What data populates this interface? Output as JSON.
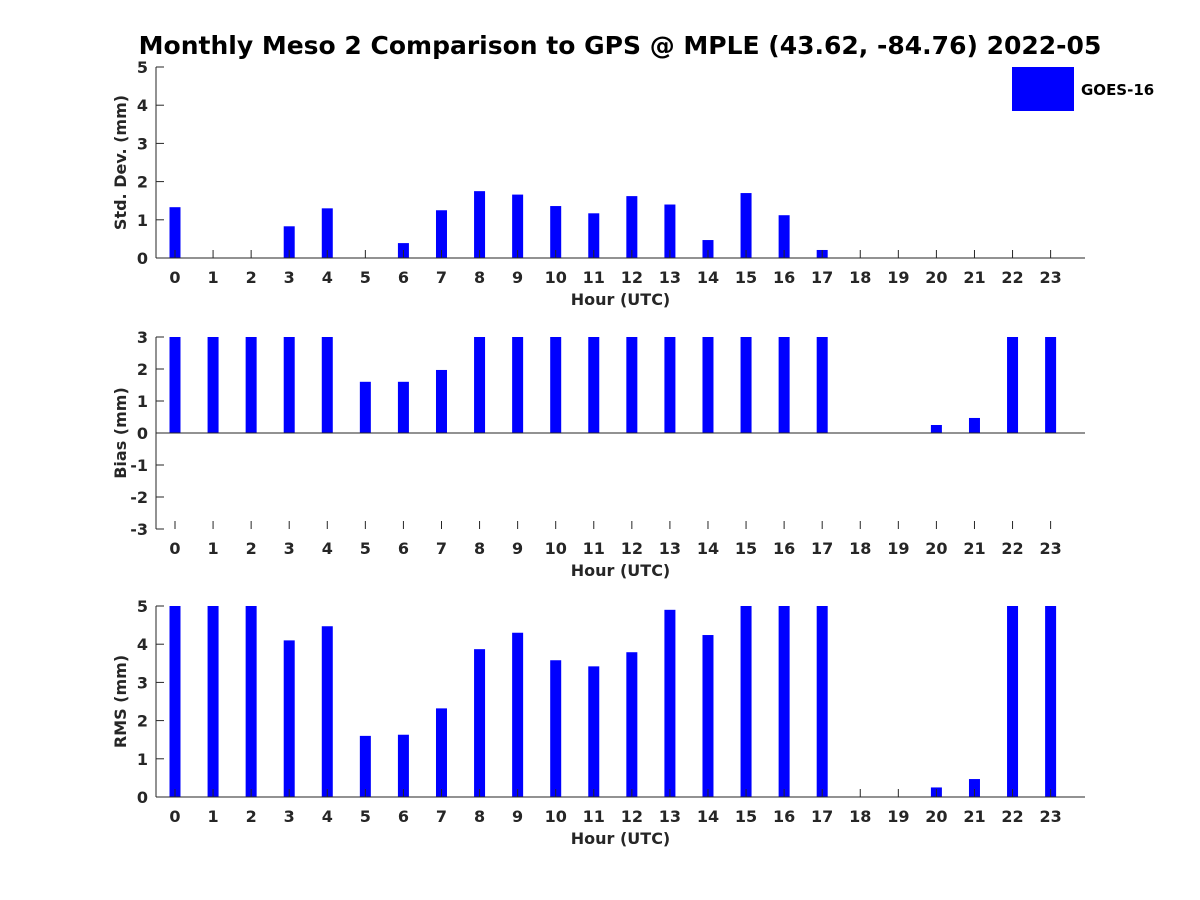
{
  "figure": {
    "title": "Monthly Meso 2 Comparison to GPS @ MPLE (43.62, -84.76) 2022-05"
  },
  "legend": {
    "label": "GOES-16",
    "color": "#0000ff",
    "placement": "top-right"
  },
  "colors": {
    "bar": "#0000ff",
    "axis": "#262626"
  },
  "chart_data": [
    {
      "type": "bar",
      "ylabel": "Std. Dev. (mm)",
      "xlabel": "Hour (UTC)",
      "ylim": [
        0,
        5
      ],
      "yticks": [
        0,
        1,
        2,
        3,
        4,
        5
      ],
      "categories": [
        "0",
        "1",
        "2",
        "3",
        "4",
        "5",
        "6",
        "7",
        "8",
        "9",
        "10",
        "11",
        "12",
        "13",
        "14",
        "15",
        "16",
        "17",
        "18",
        "19",
        "20",
        "21",
        "22",
        "23"
      ],
      "series": [
        {
          "name": "GOES-16",
          "values": [
            1.33,
            0,
            0,
            0.83,
            1.3,
            0,
            0.39,
            1.25,
            1.75,
            1.66,
            1.36,
            1.17,
            1.62,
            1.4,
            0.47,
            1.7,
            1.12,
            0.21,
            0,
            0,
            0,
            0,
            0,
            0
          ]
        }
      ]
    },
    {
      "type": "bar",
      "ylabel": "Bias (mm)",
      "xlabel": "Hour (UTC)",
      "ylim": [
        -3,
        3
      ],
      "yticks": [
        -3,
        -2,
        -1,
        0,
        1,
        2,
        3
      ],
      "categories": [
        "0",
        "1",
        "2",
        "3",
        "4",
        "5",
        "6",
        "7",
        "8",
        "9",
        "10",
        "11",
        "12",
        "13",
        "14",
        "15",
        "16",
        "17",
        "18",
        "19",
        "20",
        "21",
        "22",
        "23"
      ],
      "series": [
        {
          "name": "GOES-16",
          "values": [
            3,
            3,
            3,
            3,
            3,
            1.6,
            1.6,
            1.97,
            3,
            3,
            3,
            3,
            3,
            3,
            3,
            3,
            3,
            3,
            0,
            0,
            0.25,
            0.47,
            3,
            3
          ]
        }
      ]
    },
    {
      "type": "bar",
      "ylabel": "RMS (mm)",
      "xlabel": "Hour (UTC)",
      "ylim": [
        0,
        5
      ],
      "yticks": [
        0,
        1,
        2,
        3,
        4,
        5
      ],
      "categories": [
        "0",
        "1",
        "2",
        "3",
        "4",
        "5",
        "6",
        "7",
        "8",
        "9",
        "10",
        "11",
        "12",
        "13",
        "14",
        "15",
        "16",
        "17",
        "18",
        "19",
        "20",
        "21",
        "22",
        "23"
      ],
      "series": [
        {
          "name": "GOES-16",
          "values": [
            5,
            5,
            5,
            4.1,
            4.47,
            1.6,
            1.63,
            2.32,
            3.87,
            4.3,
            3.58,
            3.42,
            3.79,
            4.9,
            4.24,
            5,
            5,
            5,
            0,
            0,
            0.25,
            0.47,
            5,
            5
          ]
        }
      ]
    }
  ]
}
